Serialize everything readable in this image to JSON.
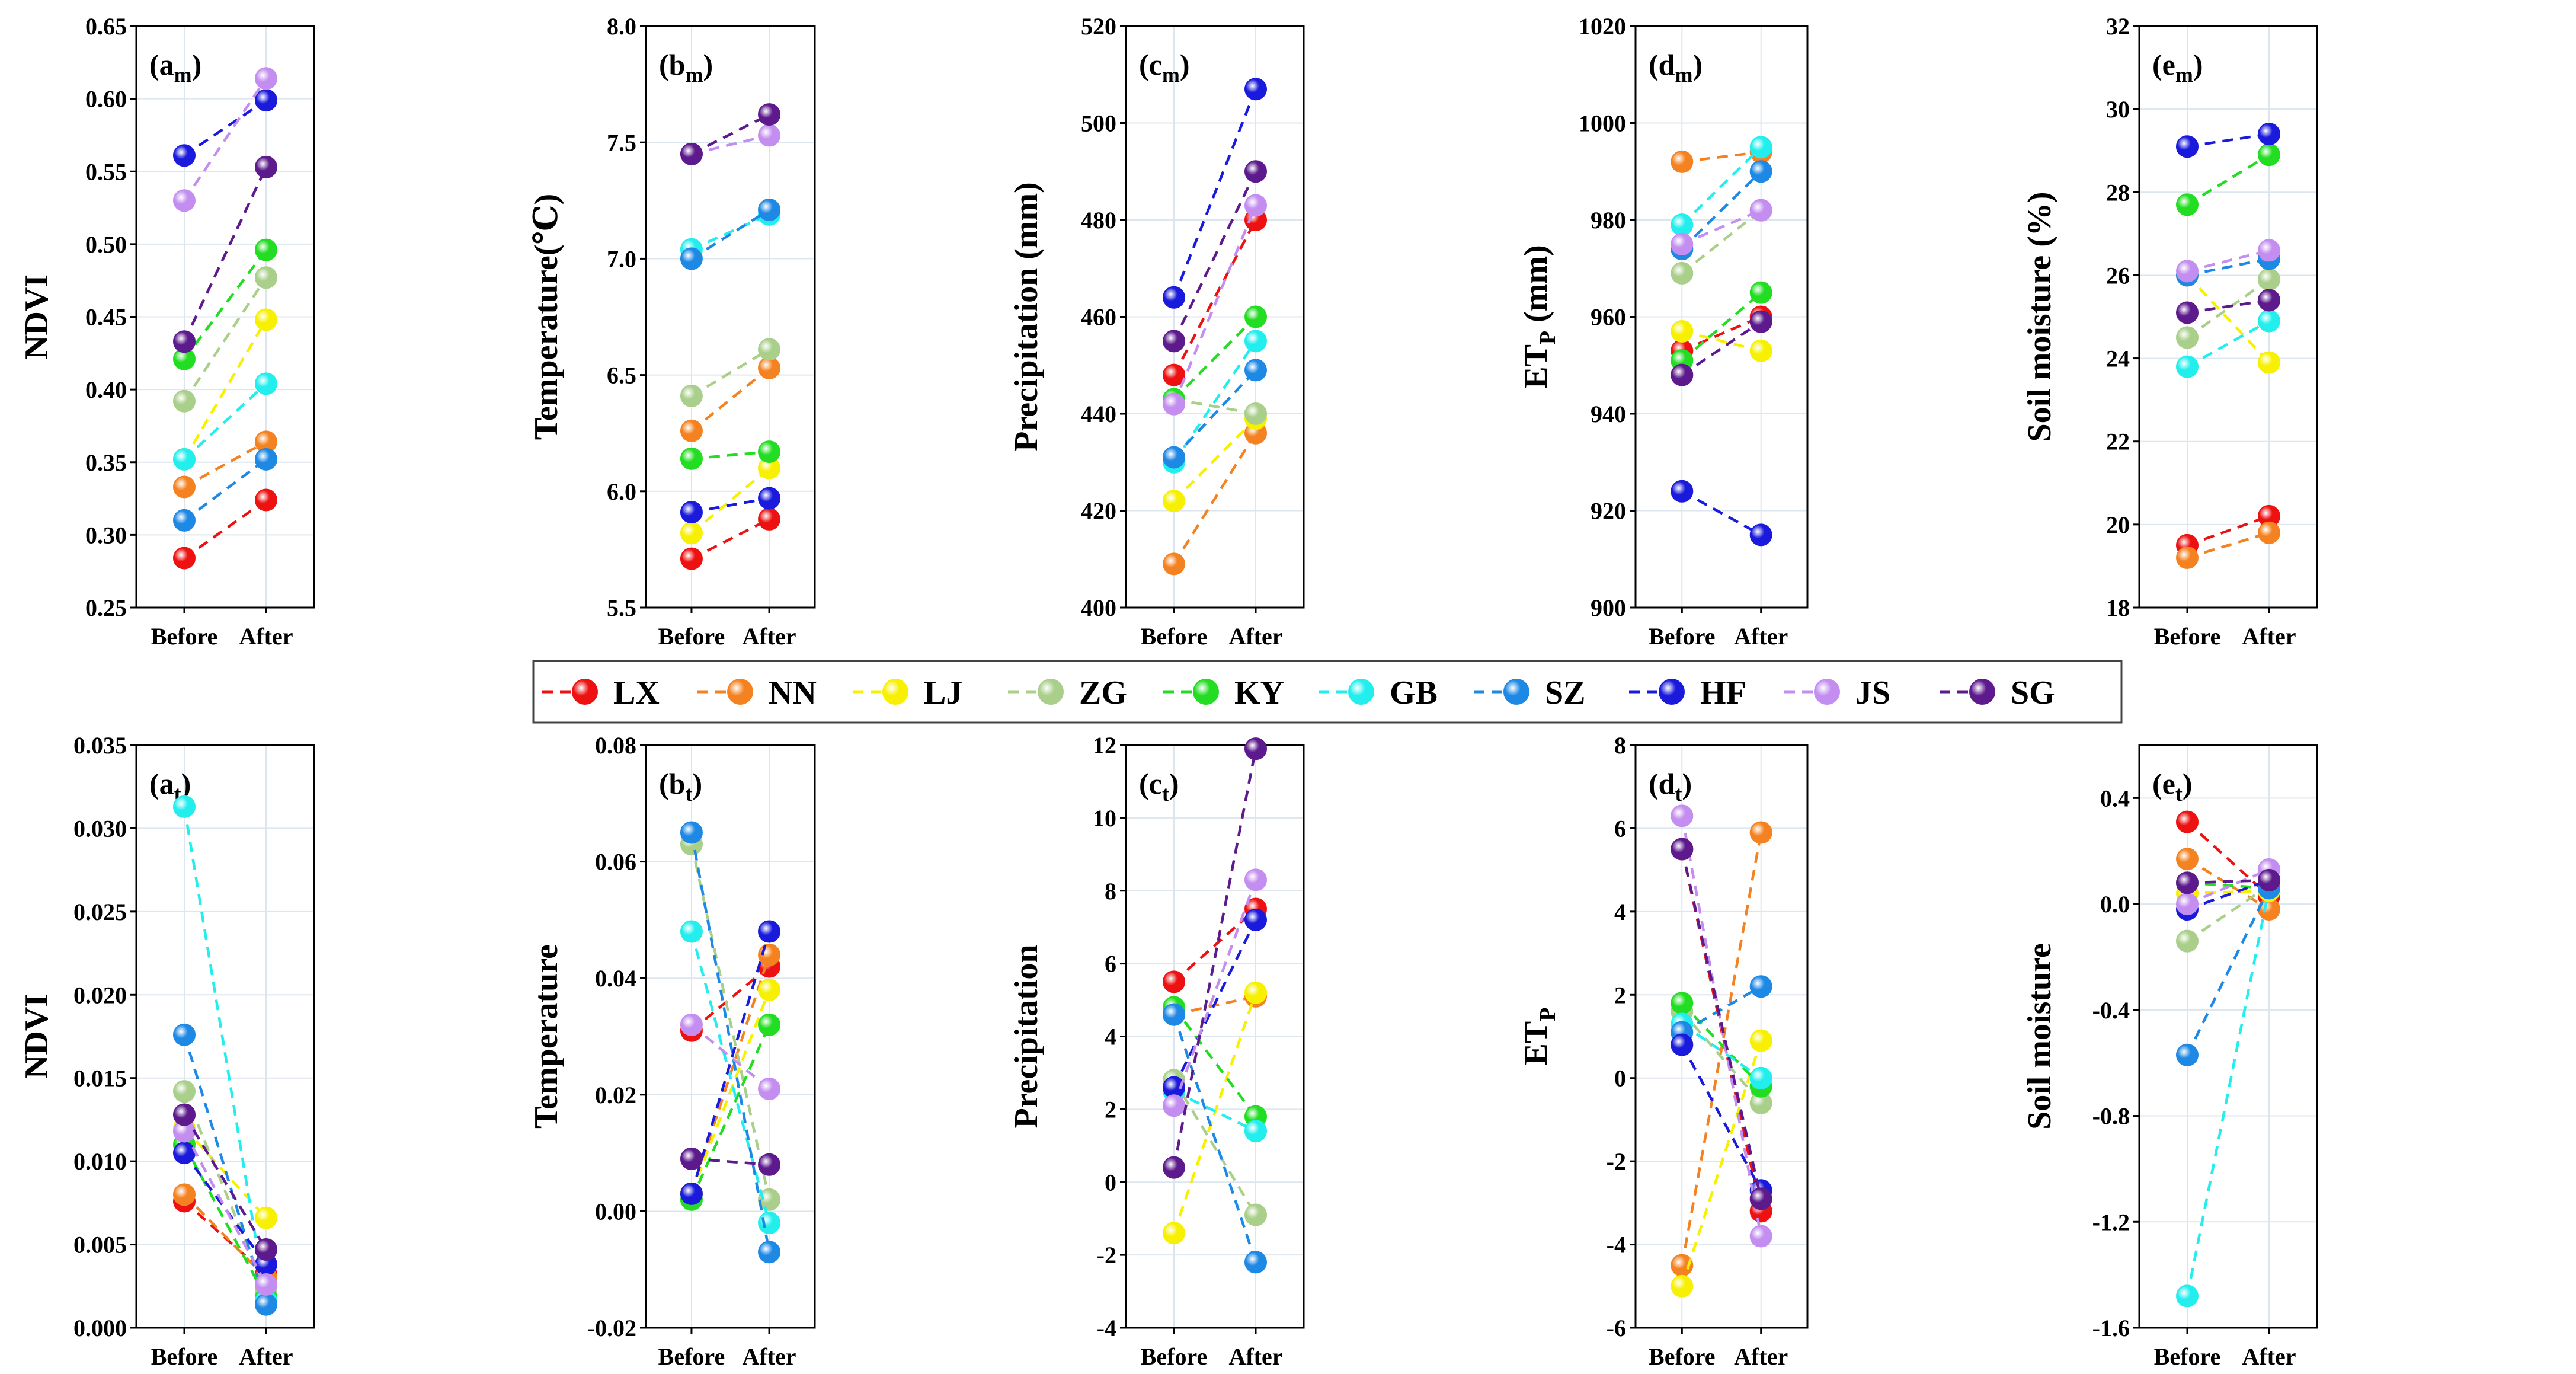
{
  "sites": [
    "LX",
    "NN",
    "LJ",
    "ZG",
    "KY",
    "GB",
    "SZ",
    "HF",
    "JS",
    "SG"
  ],
  "colors": {
    "LX": "#ee1111",
    "NN": "#f58220",
    "LJ": "#f7f000",
    "ZG": "#a9cf8a",
    "KY": "#22dd22",
    "GB": "#22eeee",
    "SZ": "#1e88e5",
    "HF": "#1a1adc",
    "JS": "#c38ef0",
    "SG": "#5c1a8c"
  },
  "legend": [
    {
      "label": "LX",
      "color": "LX"
    },
    {
      "label": "NN",
      "color": "NN"
    },
    {
      "label": "LJ",
      "color": "LJ"
    },
    {
      "label": "ZG",
      "color": "ZG"
    },
    {
      "label": "KY",
      "color": "KY"
    },
    {
      "label": "GB",
      "color": "GB"
    },
    {
      "label": "SZ",
      "color": "SZ"
    },
    {
      "label": "HF",
      "color": "HF"
    },
    {
      "label": "JS",
      "color": "JS"
    },
    {
      "label": "SG",
      "color": "SG"
    }
  ],
  "chart_data": [
    {
      "type": "line",
      "panel": "a_m",
      "label_main": "(a",
      "label_sub": "m",
      "label_close": ")",
      "ylabel": "NDVI",
      "categories": [
        "Before",
        "After"
      ],
      "ylim": [
        0.25,
        0.65
      ],
      "yticks": [
        0.25,
        0.3,
        0.35,
        0.4,
        0.45,
        0.5,
        0.55,
        0.6,
        0.65
      ],
      "decimals": 2,
      "series": [
        {
          "name": "LX",
          "values": [
            0.284,
            0.324
          ]
        },
        {
          "name": "NN",
          "values": [
            0.333,
            0.364
          ]
        },
        {
          "name": "LJ",
          "values": [
            0.352,
            0.448
          ]
        },
        {
          "name": "ZG",
          "values": [
            0.392,
            0.477
          ]
        },
        {
          "name": "KY",
          "values": [
            0.421,
            0.496
          ]
        },
        {
          "name": "GB",
          "values": [
            0.352,
            0.404
          ]
        },
        {
          "name": "SZ",
          "values": [
            0.31,
            0.352
          ]
        },
        {
          "name": "HF",
          "values": [
            0.561,
            0.599
          ]
        },
        {
          "name": "JS",
          "values": [
            0.53,
            0.614
          ]
        },
        {
          "name": "SG",
          "values": [
            0.433,
            0.553
          ]
        }
      ]
    },
    {
      "type": "line",
      "panel": "b_m",
      "label_main": "(b",
      "label_sub": "m",
      "label_close": ")",
      "ylabel": "Temperature(℃)",
      "categories": [
        "Before",
        "After"
      ],
      "ylim": [
        5.5,
        8.0
      ],
      "yticks": [
        5.5,
        6.0,
        6.5,
        7.0,
        7.5,
        8.0
      ],
      "decimals": 1,
      "series": [
        {
          "name": "LX",
          "values": [
            5.71,
            5.88
          ]
        },
        {
          "name": "NN",
          "values": [
            6.26,
            6.53
          ]
        },
        {
          "name": "LJ",
          "values": [
            5.82,
            6.1
          ]
        },
        {
          "name": "ZG",
          "values": [
            6.41,
            6.61
          ]
        },
        {
          "name": "KY",
          "values": [
            6.14,
            6.17
          ]
        },
        {
          "name": "GB",
          "values": [
            7.04,
            7.19
          ]
        },
        {
          "name": "SZ",
          "values": [
            7.0,
            7.21
          ]
        },
        {
          "name": "HF",
          "values": [
            5.91,
            5.97
          ]
        },
        {
          "name": "JS",
          "values": [
            7.45,
            7.53
          ]
        },
        {
          "name": "SG",
          "values": [
            7.45,
            7.62
          ]
        }
      ]
    },
    {
      "type": "line",
      "panel": "c_m",
      "label_main": "(c",
      "label_sub": "m",
      "label_close": ")",
      "ylabel": "Precipitation (mm)",
      "categories": [
        "Before",
        "After"
      ],
      "ylim": [
        400,
        520
      ],
      "yticks": [
        400,
        420,
        440,
        460,
        480,
        500,
        520
      ],
      "decimals": 0,
      "series": [
        {
          "name": "LX",
          "values": [
            448,
            480
          ]
        },
        {
          "name": "NN",
          "values": [
            409,
            436
          ]
        },
        {
          "name": "LJ",
          "values": [
            422,
            439
          ]
        },
        {
          "name": "ZG",
          "values": [
            443,
            440
          ]
        },
        {
          "name": "KY",
          "values": [
            443,
            460
          ]
        },
        {
          "name": "GB",
          "values": [
            430,
            455
          ]
        },
        {
          "name": "SZ",
          "values": [
            431,
            449
          ]
        },
        {
          "name": "HF",
          "values": [
            464,
            507
          ]
        },
        {
          "name": "JS",
          "values": [
            442,
            483
          ]
        },
        {
          "name": "SG",
          "values": [
            455,
            490
          ]
        }
      ]
    },
    {
      "type": "line",
      "panel": "d_m",
      "label_main": "(d",
      "label_sub": "m",
      "label_close": ")",
      "ylabel_main": "ET",
      "ylabel_sub": "P",
      "ylabel_rest": " (mm)",
      "categories": [
        "Before",
        "After"
      ],
      "ylim": [
        900,
        1020
      ],
      "yticks": [
        900,
        920,
        940,
        960,
        980,
        1000,
        1020
      ],
      "decimals": 0,
      "series": [
        {
          "name": "LX",
          "values": [
            953,
            960
          ]
        },
        {
          "name": "NN",
          "values": [
            992,
            994
          ]
        },
        {
          "name": "LJ",
          "values": [
            957,
            953
          ]
        },
        {
          "name": "ZG",
          "values": [
            969,
            982
          ]
        },
        {
          "name": "KY",
          "values": [
            951,
            965
          ]
        },
        {
          "name": "GB",
          "values": [
            979,
            995
          ]
        },
        {
          "name": "SZ",
          "values": [
            974,
            990
          ]
        },
        {
          "name": "HF",
          "values": [
            924,
            915
          ]
        },
        {
          "name": "JS",
          "values": [
            975,
            982
          ]
        },
        {
          "name": "SG",
          "values": [
            948,
            959
          ]
        }
      ]
    },
    {
      "type": "line",
      "panel": "e_m",
      "label_main": "(e",
      "label_sub": "m",
      "label_close": ")",
      "ylabel": "Soil moisture (%)",
      "categories": [
        "Before",
        "After"
      ],
      "ylim": [
        18,
        32
      ],
      "yticks": [
        18,
        20,
        22,
        24,
        26,
        28,
        30,
        32
      ],
      "decimals": 0,
      "series": [
        {
          "name": "LX",
          "values": [
            19.5,
            20.2
          ]
        },
        {
          "name": "NN",
          "values": [
            19.2,
            19.8
          ]
        },
        {
          "name": "LJ",
          "values": [
            26.0,
            23.9
          ]
        },
        {
          "name": "ZG",
          "values": [
            24.5,
            25.9
          ]
        },
        {
          "name": "KY",
          "values": [
            27.7,
            28.9
          ]
        },
        {
          "name": "GB",
          "values": [
            23.8,
            24.9
          ]
        },
        {
          "name": "SZ",
          "values": [
            26.0,
            26.4
          ]
        },
        {
          "name": "HF",
          "values": [
            29.1,
            29.4
          ]
        },
        {
          "name": "JS",
          "values": [
            26.1,
            26.6
          ]
        },
        {
          "name": "SG",
          "values": [
            25.1,
            25.4
          ]
        }
      ]
    },
    {
      "type": "line",
      "panel": "a_t",
      "label_main": "(a",
      "label_sub": "t",
      "label_close": ")",
      "ylabel": "NDVI",
      "categories": [
        "Before",
        "After"
      ],
      "ylim": [
        0.0,
        0.035
      ],
      "yticks": [
        0.0,
        0.005,
        0.01,
        0.015,
        0.02,
        0.025,
        0.03,
        0.035
      ],
      "decimals": 3,
      "series": [
        {
          "name": "LX",
          "values": [
            0.0076,
            0.0032
          ]
        },
        {
          "name": "NN",
          "values": [
            0.008,
            0.003
          ]
        },
        {
          "name": "LJ",
          "values": [
            0.012,
            0.0066
          ]
        },
        {
          "name": "ZG",
          "values": [
            0.0142,
            0.0022
          ]
        },
        {
          "name": "KY",
          "values": [
            0.011,
            0.0018
          ]
        },
        {
          "name": "GB",
          "values": [
            0.0313,
            0.0016
          ]
        },
        {
          "name": "SZ",
          "values": [
            0.0176,
            0.0014
          ]
        },
        {
          "name": "HF",
          "values": [
            0.0105,
            0.0038
          ]
        },
        {
          "name": "JS",
          "values": [
            0.0118,
            0.0026
          ]
        },
        {
          "name": "SG",
          "values": [
            0.0128,
            0.0047
          ]
        }
      ]
    },
    {
      "type": "line",
      "panel": "b_t",
      "label_main": "(b",
      "label_sub": "t",
      "label_close": ")",
      "ylabel": "Temperature",
      "categories": [
        "Before",
        "After"
      ],
      "ylim": [
        -0.02,
        0.08
      ],
      "yticks": [
        -0.02,
        0.0,
        0.02,
        0.04,
        0.06,
        0.08
      ],
      "decimals": 2,
      "series": [
        {
          "name": "LX",
          "values": [
            0.031,
            0.042
          ]
        },
        {
          "name": "NN",
          "values": [
            0.003,
            0.044
          ]
        },
        {
          "name": "LJ",
          "values": [
            0.003,
            0.038
          ]
        },
        {
          "name": "ZG",
          "values": [
            0.063,
            0.002
          ]
        },
        {
          "name": "KY",
          "values": [
            0.002,
            0.032
          ]
        },
        {
          "name": "GB",
          "values": [
            0.048,
            -0.002
          ]
        },
        {
          "name": "SZ",
          "values": [
            0.065,
            -0.007
          ]
        },
        {
          "name": "HF",
          "values": [
            0.003,
            0.048
          ]
        },
        {
          "name": "JS",
          "values": [
            0.032,
            0.021
          ]
        },
        {
          "name": "SG",
          "values": [
            0.009,
            0.008
          ]
        }
      ]
    },
    {
      "type": "line",
      "panel": "c_t",
      "label_main": "(c",
      "label_sub": "t",
      "label_close": ")",
      "ylabel": "Precipitation",
      "categories": [
        "Before",
        "After"
      ],
      "ylim": [
        -4,
        12
      ],
      "yticks": [
        -4,
        -2,
        0,
        2,
        4,
        6,
        8,
        10,
        12
      ],
      "decimals": 0,
      "series": [
        {
          "name": "LX",
          "values": [
            5.5,
            7.5
          ]
        },
        {
          "name": "NN",
          "values": [
            4.6,
            5.1
          ]
        },
        {
          "name": "LJ",
          "values": [
            -1.4,
            5.2
          ]
        },
        {
          "name": "ZG",
          "values": [
            2.8,
            -0.9
          ]
        },
        {
          "name": "KY",
          "values": [
            4.8,
            1.8
          ]
        },
        {
          "name": "GB",
          "values": [
            2.5,
            1.4
          ]
        },
        {
          "name": "SZ",
          "values": [
            4.6,
            -2.2
          ]
        },
        {
          "name": "HF",
          "values": [
            2.6,
            7.2
          ]
        },
        {
          "name": "JS",
          "values": [
            2.1,
            8.3
          ]
        },
        {
          "name": "SG",
          "values": [
            0.4,
            11.9
          ]
        }
      ]
    },
    {
      "type": "line",
      "panel": "d_t",
      "label_main": "(d",
      "label_sub": "t",
      "label_close": ")",
      "ylabel_main": "ET",
      "ylabel_sub": "P",
      "ylabel_rest": "",
      "categories": [
        "Before",
        "After"
      ],
      "ylim": [
        -6,
        8
      ],
      "yticks": [
        -6,
        -4,
        -2,
        0,
        2,
        4,
        6,
        8
      ],
      "decimals": 0,
      "series": [
        {
          "name": "LX",
          "values": [
            5.5,
            -3.2
          ]
        },
        {
          "name": "NN",
          "values": [
            -4.5,
            5.9
          ]
        },
        {
          "name": "LJ",
          "values": [
            -5.0,
            0.9
          ]
        },
        {
          "name": "ZG",
          "values": [
            1.6,
            -0.6
          ]
        },
        {
          "name": "KY",
          "values": [
            1.8,
            -0.2
          ]
        },
        {
          "name": "GB",
          "values": [
            1.3,
            0.0
          ]
        },
        {
          "name": "SZ",
          "values": [
            1.1,
            2.2
          ]
        },
        {
          "name": "HF",
          "values": [
            0.8,
            -2.7
          ]
        },
        {
          "name": "JS",
          "values": [
            6.3,
            -3.8
          ]
        },
        {
          "name": "SG",
          "values": [
            5.5,
            -2.9
          ]
        }
      ]
    },
    {
      "type": "line",
      "panel": "e_t",
      "label_main": "(e",
      "label_sub": "t",
      "label_close": ")",
      "ylabel": "Soil moisture",
      "categories": [
        "Before",
        "After"
      ],
      "ylim": [
        -1.6,
        0.6
      ],
      "yticks": [
        -1.6,
        -1.2,
        -0.8,
        -0.4,
        0.0,
        0.4
      ],
      "decimals": 1,
      "series": [
        {
          "name": "LX",
          "values": [
            0.31,
            0.03
          ]
        },
        {
          "name": "NN",
          "values": [
            0.17,
            -0.02
          ]
        },
        {
          "name": "LJ",
          "values": [
            0.04,
            0.05
          ]
        },
        {
          "name": "ZG",
          "values": [
            -0.14,
            0.07
          ]
        },
        {
          "name": "KY",
          "values": [
            0.08,
            0.06
          ]
        },
        {
          "name": "GB",
          "values": [
            -1.48,
            0.06
          ]
        },
        {
          "name": "SZ",
          "values": [
            -0.57,
            0.06
          ]
        },
        {
          "name": "HF",
          "values": [
            -0.02,
            0.09
          ]
        },
        {
          "name": "JS",
          "values": [
            0.0,
            0.13
          ]
        },
        {
          "name": "SG",
          "values": [
            0.08,
            0.09
          ]
        }
      ]
    }
  ]
}
